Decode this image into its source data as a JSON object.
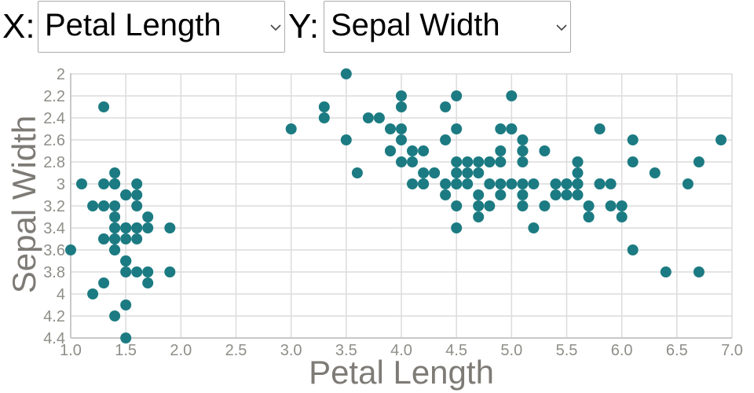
{
  "controls": {
    "x_label": "X:",
    "y_label": "Y:",
    "x_axis_select": {
      "value": "Petal Length"
    },
    "y_axis_select": {
      "value": "Sepal Width"
    }
  },
  "colors": {
    "marker": "#1c7b82",
    "grid": "#dcdcdc",
    "axis_line": "#c9c9c9",
    "tick_text": "#8e8e89",
    "axis_title": "#7e7b76",
    "select_border": "#ababab",
    "text": "#000000"
  },
  "chart_data": {
    "type": "scatter",
    "title": "",
    "xlabel": "Petal Length",
    "ylabel": "Sepal Width",
    "xlim": [
      1.0,
      7.0
    ],
    "ylim": [
      2.0,
      4.4
    ],
    "y_inverted": true,
    "grid": true,
    "marker_color": "#1c7b82",
    "x_ticks": [
      1.0,
      1.5,
      2.0,
      2.5,
      3.0,
      3.5,
      4.0,
      4.5,
      5.0,
      5.5,
      6.0,
      6.5,
      7.0
    ],
    "x_tick_labels": [
      "1.0",
      "1.5",
      "2.0",
      "2.5",
      "3.0",
      "3.5",
      "4.0",
      "4.5",
      "5.0",
      "5.5",
      "6.0",
      "6.5",
      "7.0"
    ],
    "y_ticks": [
      2.0,
      2.2,
      2.4,
      2.6,
      2.8,
      3.0,
      3.2,
      3.4,
      3.6,
      3.8,
      4.0,
      4.2,
      4.4
    ],
    "y_tick_labels": [
      "2",
      "2.2",
      "2.4",
      "2.6",
      "2.8",
      "3",
      "3.2",
      "3.4",
      "3.6",
      "3.8",
      "4",
      "4.2",
      "4.4"
    ],
    "points": [
      [
        1.4,
        3.5
      ],
      [
        1.4,
        3.0
      ],
      [
        1.3,
        3.2
      ],
      [
        1.5,
        3.1
      ],
      [
        1.4,
        3.6
      ],
      [
        1.7,
        3.9
      ],
      [
        1.4,
        3.4
      ],
      [
        1.5,
        3.4
      ],
      [
        1.4,
        2.9
      ],
      [
        1.5,
        3.1
      ],
      [
        1.5,
        3.7
      ],
      [
        1.6,
        3.4
      ],
      [
        1.4,
        3.0
      ],
      [
        1.1,
        3.0
      ],
      [
        1.2,
        4.0
      ],
      [
        1.5,
        4.4
      ],
      [
        1.3,
        3.9
      ],
      [
        1.4,
        3.5
      ],
      [
        1.7,
        3.8
      ],
      [
        1.5,
        3.8
      ],
      [
        1.7,
        3.4
      ],
      [
        1.5,
        3.7
      ],
      [
        1.0,
        3.6
      ],
      [
        1.7,
        3.3
      ],
      [
        1.9,
        3.4
      ],
      [
        1.6,
        3.0
      ],
      [
        1.6,
        3.4
      ],
      [
        1.5,
        3.5
      ],
      [
        1.4,
        3.4
      ],
      [
        1.6,
        3.2
      ],
      [
        1.6,
        3.1
      ],
      [
        1.5,
        3.4
      ],
      [
        1.5,
        4.1
      ],
      [
        1.4,
        4.2
      ],
      [
        1.5,
        3.1
      ],
      [
        1.2,
        3.2
      ],
      [
        1.3,
        3.5
      ],
      [
        1.4,
        3.6
      ],
      [
        1.3,
        3.0
      ],
      [
        1.5,
        3.4
      ],
      [
        1.3,
        3.5
      ],
      [
        1.3,
        2.3
      ],
      [
        1.3,
        3.2
      ],
      [
        1.6,
        3.5
      ],
      [
        1.9,
        3.8
      ],
      [
        1.4,
        3.0
      ],
      [
        1.6,
        3.8
      ],
      [
        1.4,
        3.2
      ],
      [
        1.5,
        3.7
      ],
      [
        1.4,
        3.3
      ],
      [
        4.7,
        3.2
      ],
      [
        4.5,
        3.2
      ],
      [
        4.9,
        3.1
      ],
      [
        4.0,
        2.3
      ],
      [
        4.6,
        2.8
      ],
      [
        4.5,
        2.8
      ],
      [
        4.7,
        3.3
      ],
      [
        3.3,
        2.4
      ],
      [
        4.6,
        2.9
      ],
      [
        3.9,
        2.7
      ],
      [
        3.5,
        2.0
      ],
      [
        4.2,
        3.0
      ],
      [
        4.0,
        2.2
      ],
      [
        4.7,
        2.9
      ],
      [
        3.6,
        2.9
      ],
      [
        4.4,
        3.1
      ],
      [
        4.5,
        3.0
      ],
      [
        4.1,
        2.7
      ],
      [
        4.5,
        2.2
      ],
      [
        3.9,
        2.5
      ],
      [
        4.8,
        3.2
      ],
      [
        4.0,
        2.8
      ],
      [
        4.9,
        2.5
      ],
      [
        4.7,
        2.8
      ],
      [
        4.3,
        2.9
      ],
      [
        4.4,
        3.0
      ],
      [
        4.8,
        2.8
      ],
      [
        5.0,
        3.0
      ],
      [
        4.5,
        2.9
      ],
      [
        3.5,
        2.6
      ],
      [
        3.8,
        2.4
      ],
      [
        3.7,
        2.4
      ],
      [
        3.9,
        2.7
      ],
      [
        5.1,
        2.7
      ],
      [
        4.5,
        3.0
      ],
      [
        4.5,
        3.4
      ],
      [
        4.7,
        3.1
      ],
      [
        4.4,
        2.3
      ],
      [
        4.1,
        3.0
      ],
      [
        4.0,
        2.5
      ],
      [
        4.4,
        2.6
      ],
      [
        4.6,
        3.0
      ],
      [
        4.0,
        2.6
      ],
      [
        3.3,
        2.3
      ],
      [
        4.2,
        2.7
      ],
      [
        4.2,
        3.0
      ],
      [
        4.2,
        2.9
      ],
      [
        4.3,
        2.9
      ],
      [
        3.0,
        2.5
      ],
      [
        4.1,
        2.8
      ],
      [
        6.0,
        3.3
      ],
      [
        5.1,
        2.7
      ],
      [
        5.9,
        3.0
      ],
      [
        5.6,
        2.9
      ],
      [
        5.8,
        3.0
      ],
      [
        6.6,
        3.0
      ],
      [
        4.5,
        2.5
      ],
      [
        6.3,
        2.9
      ],
      [
        5.8,
        2.5
      ],
      [
        6.1,
        3.6
      ],
      [
        5.1,
        3.2
      ],
      [
        5.3,
        2.7
      ],
      [
        5.5,
        3.0
      ],
      [
        5.0,
        2.5
      ],
      [
        5.1,
        2.8
      ],
      [
        5.3,
        3.2
      ],
      [
        5.5,
        3.0
      ],
      [
        6.7,
        3.8
      ],
      [
        6.9,
        2.6
      ],
      [
        5.0,
        2.2
      ],
      [
        5.7,
        3.2
      ],
      [
        4.9,
        2.8
      ],
      [
        6.7,
        2.8
      ],
      [
        4.9,
        2.7
      ],
      [
        5.7,
        3.3
      ],
      [
        6.0,
        3.2
      ],
      [
        4.8,
        2.8
      ],
      [
        4.9,
        3.0
      ],
      [
        5.6,
        2.8
      ],
      [
        5.8,
        3.0
      ],
      [
        6.1,
        2.8
      ],
      [
        6.4,
        3.8
      ],
      [
        5.6,
        2.8
      ],
      [
        5.1,
        2.6
      ],
      [
        5.6,
        3.0
      ],
      [
        6.1,
        2.6
      ],
      [
        5.6,
        3.0
      ],
      [
        5.5,
        3.1
      ],
      [
        4.8,
        3.0
      ],
      [
        5.4,
        3.1
      ],
      [
        5.6,
        3.1
      ],
      [
        5.1,
        3.1
      ],
      [
        5.1,
        2.7
      ],
      [
        5.9,
        3.2
      ],
      [
        5.7,
        3.3
      ],
      [
        5.2,
        3.0
      ],
      [
        5.0,
        2.5
      ],
      [
        5.2,
        3.4
      ],
      [
        5.4,
        3.0
      ],
      [
        5.1,
        3.0
      ]
    ]
  }
}
